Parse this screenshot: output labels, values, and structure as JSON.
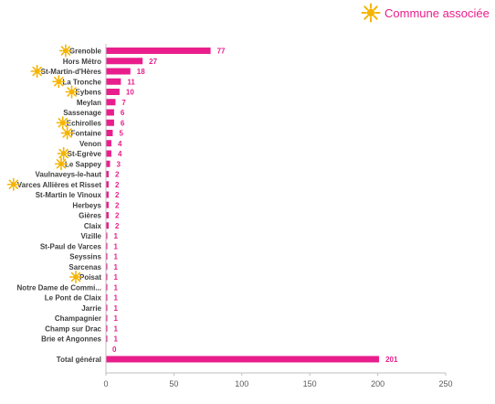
{
  "legend": {
    "label": "Commune associée",
    "icon": "sun-icon"
  },
  "colors": {
    "bar": "#e91e8c",
    "sun": "#f5b400",
    "axis": "#bfbfbf",
    "text": "#404040"
  },
  "chart_data": {
    "type": "bar",
    "orientation": "horizontal",
    "categories": [
      "Grenoble",
      "Hors Métro",
      "St-Martin-d'Hères",
      "La Tronche",
      "Eybens",
      "Meylan",
      "Sassenage",
      "Echirolles",
      "Fontaine",
      "Venon",
      "St-Egrève",
      "Le Sappey",
      "Vaulnaveys-le-haut",
      "Varces Allières et Risset",
      "St-Martin le Vinoux",
      "Herbeys",
      "Gières",
      "Claix",
      "Vizille",
      "St-Paul de Varces",
      "Seyssins",
      "Sarcenas",
      "Poisat",
      "Notre Dame de Commi...",
      "Le Pont de Claix",
      "Jarrie",
      "Champagnier",
      "Champ sur Drac",
      "Brie et Angonnes",
      "",
      "Total général"
    ],
    "values": [
      77,
      27,
      18,
      11,
      10,
      7,
      6,
      6,
      5,
      4,
      4,
      3,
      2,
      2,
      2,
      2,
      2,
      2,
      1,
      1,
      1,
      1,
      1,
      1,
      1,
      1,
      1,
      1,
      1,
      0,
      201
    ],
    "value_labels": [
      "77",
      "27",
      "18",
      "11",
      "10",
      "7",
      "6",
      "6",
      "5",
      "4",
      "4",
      "3",
      "2",
      "2",
      "2",
      "2",
      "2",
      "2",
      "1",
      "1",
      "1",
      "1",
      "1",
      "1",
      "1",
      "1",
      "1",
      "1",
      "1",
      "0",
      "201"
    ],
    "associated": [
      true,
      false,
      true,
      true,
      true,
      false,
      false,
      true,
      true,
      false,
      true,
      true,
      false,
      true,
      false,
      false,
      false,
      false,
      false,
      false,
      false,
      false,
      true,
      false,
      false,
      false,
      false,
      false,
      false,
      false,
      false
    ],
    "x_ticks": [
      "0",
      "50",
      "100",
      "150",
      "200",
      "250"
    ],
    "xlim": [
      0,
      250
    ],
    "grid": false,
    "legend_position": "top-right"
  }
}
